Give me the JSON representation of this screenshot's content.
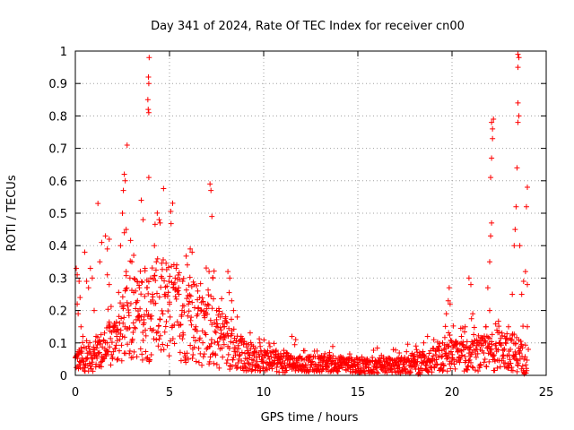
{
  "chart_data": {
    "type": "scatter",
    "title": "Day 341 of 2024, Rate Of TEC Index for receiver cn00",
    "xlabel": "GPS time / hours",
    "ylabel": "ROTI / TECUs",
    "xlim": [
      0,
      25
    ],
    "ylim": [
      0,
      1
    ],
    "xticks": [
      "0",
      "5",
      "10",
      "15",
      "20",
      "25"
    ],
    "yticks": [
      "0",
      "0.1",
      "0.2",
      "0.3",
      "0.4",
      "0.5",
      "0.6",
      "0.7",
      "0.8",
      "0.9",
      "1"
    ],
    "grid": true,
    "marker": "+",
    "marker_color": "#ff0000",
    "series": [
      {
        "points": [
          [
            0.05,
            0.33
          ],
          [
            0.1,
            0.31
          ],
          [
            0.1,
            0.22
          ],
          [
            0.15,
            0.19
          ],
          [
            0.2,
            0.29
          ],
          [
            0.25,
            0.24
          ],
          [
            0.3,
            0.15
          ],
          [
            0.4,
            0.12
          ],
          [
            0.5,
            0.38
          ],
          [
            0.6,
            0.29
          ],
          [
            0.7,
            0.27
          ],
          [
            0.8,
            0.33
          ],
          [
            0.9,
            0.3
          ],
          [
            1.0,
            0.2
          ],
          [
            1.1,
            0.12
          ],
          [
            1.2,
            0.53
          ],
          [
            1.3,
            0.35
          ],
          [
            1.4,
            0.41
          ],
          [
            1.6,
            0.43
          ],
          [
            1.7,
            0.39
          ],
          [
            1.7,
            0.31
          ],
          [
            1.8,
            0.28
          ],
          [
            1.8,
            0.42
          ],
          [
            2.0,
            0.15
          ],
          [
            2.2,
            0.12
          ],
          [
            2.4,
            0.4
          ],
          [
            2.5,
            0.5
          ],
          [
            2.55,
            0.57
          ],
          [
            2.6,
            0.62
          ],
          [
            2.65,
            0.6
          ],
          [
            2.7,
            0.45
          ],
          [
            2.75,
            0.71
          ],
          [
            2.6,
            0.44
          ],
          [
            2.7,
            0.32
          ],
          [
            2.9,
            0.3
          ],
          [
            3.0,
            0.35
          ],
          [
            3.1,
            0.37
          ],
          [
            3.2,
            0.26
          ],
          [
            3.3,
            0.23
          ],
          [
            3.4,
            0.27
          ],
          [
            3.5,
            0.54
          ],
          [
            3.6,
            0.48
          ],
          [
            3.7,
            0.33
          ],
          [
            3.8,
            0.27
          ],
          [
            3.9,
            0.61
          ],
          [
            3.92,
            0.98
          ],
          [
            3.88,
            0.92
          ],
          [
            3.9,
            0.9
          ],
          [
            3.85,
            0.85
          ],
          [
            3.87,
            0.82
          ],
          [
            3.9,
            0.81
          ],
          [
            4.0,
            0.3
          ],
          [
            4.1,
            0.25
          ],
          [
            4.2,
            0.4
          ],
          [
            4.3,
            0.35
          ],
          [
            4.45,
            0.48
          ],
          [
            4.5,
            0.47
          ],
          [
            4.6,
            0.3
          ],
          [
            4.8,
            0.25
          ],
          [
            5.0,
            0.22
          ],
          [
            5.2,
            0.27
          ],
          [
            5.3,
            0.3
          ],
          [
            5.5,
            0.25
          ],
          [
            5.7,
            0.29
          ],
          [
            6.0,
            0.22
          ],
          [
            6.1,
            0.39
          ],
          [
            6.2,
            0.38
          ],
          [
            6.3,
            0.28
          ],
          [
            6.5,
            0.26
          ],
          [
            6.7,
            0.2
          ],
          [
            6.9,
            0.19
          ],
          [
            7.1,
            0.32
          ],
          [
            7.15,
            0.59
          ],
          [
            7.2,
            0.57
          ],
          [
            7.25,
            0.49
          ],
          [
            7.3,
            0.3
          ],
          [
            7.5,
            0.2
          ],
          [
            7.7,
            0.18
          ],
          [
            7.9,
            0.15
          ],
          [
            8.1,
            0.32
          ],
          [
            8.2,
            0.3
          ],
          [
            8.3,
            0.23
          ],
          [
            8.4,
            0.2
          ],
          [
            8.6,
            0.18
          ],
          [
            8.8,
            0.12
          ],
          [
            9.2,
            0.07
          ],
          [
            9.5,
            0.06
          ],
          [
            9.8,
            0.1
          ],
          [
            10.3,
            0.05
          ],
          [
            10.8,
            0.06
          ],
          [
            11.2,
            0.07
          ],
          [
            11.5,
            0.12
          ],
          [
            11.7,
            0.11
          ],
          [
            12.0,
            0.05
          ],
          [
            12.5,
            0.04
          ],
          [
            13.0,
            0.05
          ],
          [
            13.5,
            0.07
          ],
          [
            14.0,
            0.05
          ],
          [
            14.5,
            0.04
          ],
          [
            15.0,
            0.04
          ],
          [
            15.5,
            0.05
          ],
          [
            16.0,
            0.04
          ],
          [
            16.5,
            0.05
          ],
          [
            17.0,
            0.04
          ],
          [
            17.5,
            0.05
          ],
          [
            18.0,
            0.04
          ],
          [
            18.5,
            0.1
          ],
          [
            18.7,
            0.12
          ],
          [
            19.0,
            0.06
          ],
          [
            19.5,
            0.1
          ],
          [
            19.7,
            0.19
          ],
          [
            19.8,
            0.23
          ],
          [
            19.85,
            0.27
          ],
          [
            19.9,
            0.22
          ],
          [
            20.0,
            0.1
          ],
          [
            20.5,
            0.12
          ],
          [
            20.7,
            0.15
          ],
          [
            20.9,
            0.3
          ],
          [
            21.0,
            0.28
          ],
          [
            21.1,
            0.19
          ],
          [
            21.5,
            0.08
          ],
          [
            21.8,
            0.15
          ],
          [
            21.9,
            0.27
          ],
          [
            22.0,
            0.35
          ],
          [
            22.05,
            0.43
          ],
          [
            22.1,
            0.47
          ],
          [
            22.05,
            0.61
          ],
          [
            22.1,
            0.67
          ],
          [
            22.15,
            0.73
          ],
          [
            22.1,
            0.78
          ],
          [
            22.2,
            0.79
          ],
          [
            22.15,
            0.76
          ],
          [
            22.0,
            0.2
          ],
          [
            22.5,
            0.1
          ],
          [
            22.8,
            0.12
          ],
          [
            23.0,
            0.15
          ],
          [
            23.2,
            0.25
          ],
          [
            23.3,
            0.4
          ],
          [
            23.35,
            0.45
          ],
          [
            23.4,
            0.52
          ],
          [
            23.45,
            0.64
          ],
          [
            23.5,
            0.99
          ],
          [
            23.55,
            0.98
          ],
          [
            23.5,
            0.95
          ],
          [
            23.5,
            0.84
          ],
          [
            23.55,
            0.8
          ],
          [
            23.5,
            0.78
          ],
          [
            23.6,
            0.4
          ],
          [
            23.7,
            0.25
          ],
          [
            23.8,
            0.29
          ],
          [
            23.9,
            0.32
          ],
          [
            24.0,
            0.58
          ],
          [
            23.95,
            0.52
          ],
          [
            24.0,
            0.28
          ],
          [
            24.0,
            0.15
          ],
          [
            24.05,
            0.08
          ]
        ],
        "dense_band": [
          [
            0,
            0.045,
            0.02
          ],
          [
            1,
            0.06,
            0.03
          ],
          [
            2,
            0.1,
            0.05
          ],
          [
            3,
            0.18,
            0.08
          ],
          [
            4,
            0.2,
            0.1
          ],
          [
            5,
            0.2,
            0.1
          ],
          [
            6,
            0.18,
            0.09
          ],
          [
            7,
            0.15,
            0.08
          ],
          [
            8,
            0.1,
            0.05
          ],
          [
            9,
            0.06,
            0.03
          ],
          [
            10,
            0.045,
            0.02
          ],
          [
            11,
            0.04,
            0.02
          ],
          [
            12,
            0.035,
            0.015
          ],
          [
            13,
            0.035,
            0.015
          ],
          [
            14,
            0.035,
            0.015
          ],
          [
            15,
            0.03,
            0.015
          ],
          [
            16,
            0.03,
            0.015
          ],
          [
            17,
            0.03,
            0.015
          ],
          [
            18,
            0.035,
            0.02
          ],
          [
            19,
            0.045,
            0.025
          ],
          [
            20,
            0.06,
            0.03
          ],
          [
            21,
            0.06,
            0.03
          ],
          [
            22,
            0.07,
            0.035
          ],
          [
            23,
            0.08,
            0.04
          ],
          [
            24,
            0.05,
            0.03
          ]
        ]
      }
    ]
  }
}
